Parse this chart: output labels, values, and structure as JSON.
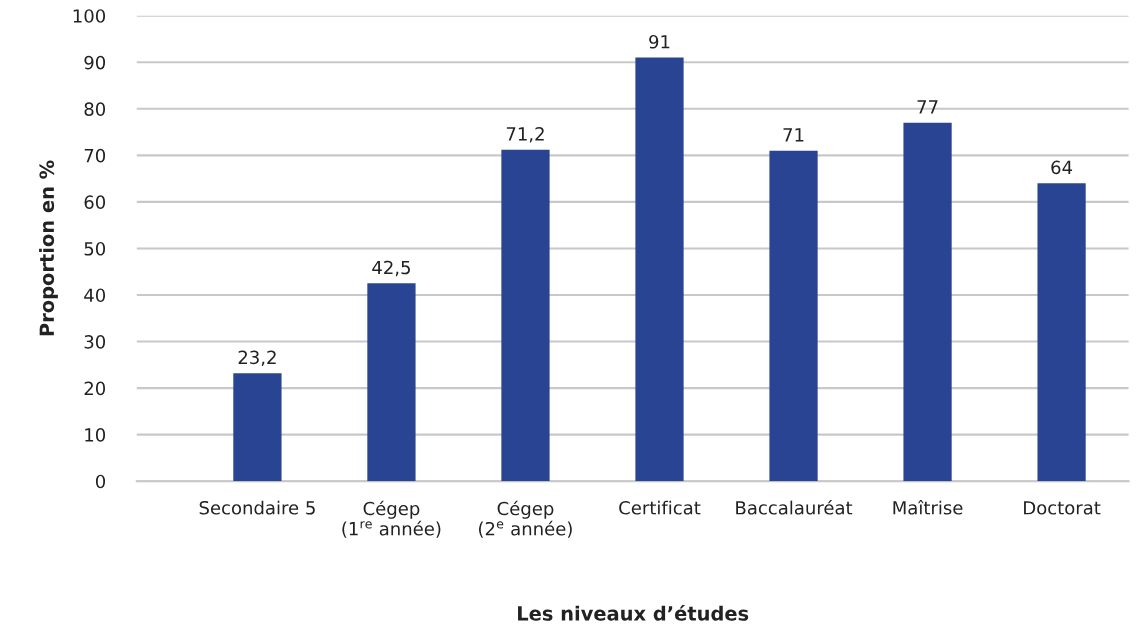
{
  "chart_data": {
    "type": "bar",
    "xlabel": "Les niveaux d’études",
    "ylabel": "Proportion en %",
    "categories": [
      "Secondaire 5",
      "Cégep\n(1$^{re}$ année)",
      "Cégep\n(2$^{e}$ année)",
      "Certificat",
      "Baccalauréat",
      "Maîtrise",
      "Doctorat"
    ],
    "values": [
      23.2,
      42.5,
      71.2,
      91,
      71,
      77,
      64
    ],
    "value_labels": [
      "23,2",
      "42,5",
      "71,2",
      "91",
      "71",
      "77",
      "64"
    ],
    "color": "#2a4494",
    "ylim": [
      0,
      100
    ],
    "yticks": [
      0,
      10,
      20,
      30,
      40,
      50,
      60,
      70,
      80,
      90,
      100
    ],
    "grid": "y"
  }
}
